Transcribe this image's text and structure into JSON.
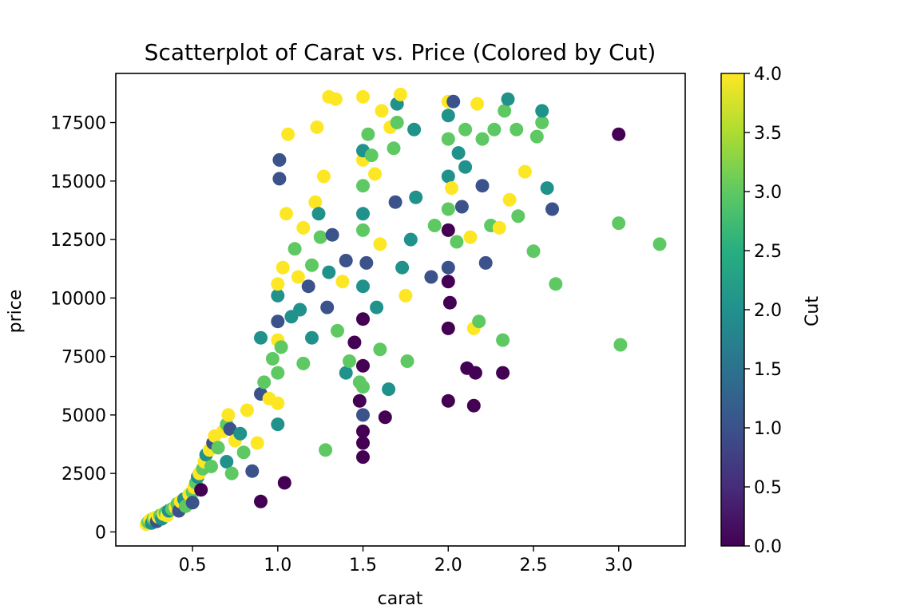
{
  "chart_data": {
    "type": "scatter",
    "title": "Scatterplot of Carat vs. Price (Colored by Cut)",
    "xlabel": "carat",
    "ylabel": "price",
    "xlim": [
      0.05,
      3.39
    ],
    "ylim": [
      -600,
      19600
    ],
    "xticks": [
      0.5,
      1.0,
      1.5,
      2.0,
      2.5,
      3.0
    ],
    "xtick_labels": [
      "0.5",
      "1.0",
      "1.5",
      "2.0",
      "2.5",
      "3.0"
    ],
    "yticks": [
      0,
      2500,
      5000,
      7500,
      10000,
      12500,
      15000,
      17500
    ],
    "ytick_labels": [
      "0",
      "2500",
      "5000",
      "7500",
      "10000",
      "12500",
      "15000",
      "17500"
    ],
    "colorbar": {
      "label": "Cut",
      "colormap": "viridis",
      "range": [
        0.0,
        4.0
      ],
      "ticks": [
        0.0,
        0.5,
        1.0,
        1.5,
        2.0,
        2.5,
        3.0,
        3.5,
        4.0
      ],
      "tick_labels": [
        "0.0",
        "0.5",
        "1.0",
        "1.5",
        "2.0",
        "2.5",
        "3.0",
        "3.5",
        "4.0"
      ]
    },
    "viridis_stops": [
      "#440154",
      "#472c7a",
      "#3b528b",
      "#2c728e",
      "#21918c",
      "#28ae80",
      "#5ec962",
      "#addc30",
      "#fde725"
    ],
    "points": [
      [
        0.23,
        330,
        4
      ],
      [
        0.24,
        420,
        3
      ],
      [
        0.25,
        500,
        4
      ],
      [
        0.26,
        380,
        2
      ],
      [
        0.27,
        560,
        3
      ],
      [
        0.28,
        610,
        4
      ],
      [
        0.29,
        450,
        1
      ],
      [
        0.3,
        640,
        4
      ],
      [
        0.31,
        700,
        3
      ],
      [
        0.32,
        560,
        2
      ],
      [
        0.33,
        760,
        4
      ],
      [
        0.34,
        820,
        3
      ],
      [
        0.35,
        700,
        4
      ],
      [
        0.36,
        900,
        2
      ],
      [
        0.38,
        980,
        3
      ],
      [
        0.4,
        1050,
        4
      ],
      [
        0.41,
        1200,
        3
      ],
      [
        0.42,
        900,
        1
      ],
      [
        0.43,
        1300,
        4
      ],
      [
        0.45,
        1400,
        2
      ],
      [
        0.46,
        1100,
        3
      ],
      [
        0.48,
        1600,
        4
      ],
      [
        0.5,
        1700,
        3
      ],
      [
        0.5,
        1250,
        1
      ],
      [
        0.51,
        1900,
        4
      ],
      [
        0.52,
        2100,
        3
      ],
      [
        0.53,
        2350,
        2
      ],
      [
        0.54,
        2500,
        4
      ],
      [
        0.55,
        1800,
        0
      ],
      [
        0.56,
        2700,
        3
      ],
      [
        0.57,
        3000,
        4
      ],
      [
        0.58,
        3300,
        2
      ],
      [
        0.6,
        3500,
        4
      ],
      [
        0.61,
        2800,
        3
      ],
      [
        0.62,
        3800,
        1
      ],
      [
        0.63,
        4100,
        4
      ],
      [
        0.65,
        3600,
        3
      ],
      [
        0.68,
        4300,
        4
      ],
      [
        0.7,
        4600,
        3
      ],
      [
        0.7,
        3000,
        2
      ],
      [
        0.71,
        5000,
        4
      ],
      [
        0.72,
        4400,
        1
      ],
      [
        0.73,
        2500,
        3
      ],
      [
        0.75,
        3900,
        4
      ],
      [
        0.78,
        4200,
        2
      ],
      [
        0.8,
        3400,
        3
      ],
      [
        0.82,
        5200,
        4
      ],
      [
        0.85,
        2600,
        1
      ],
      [
        0.88,
        3800,
        4
      ],
      [
        0.9,
        1300,
        0
      ],
      [
        0.9,
        5900,
        1
      ],
      [
        0.9,
        8300,
        2
      ],
      [
        0.92,
        6400,
        3
      ],
      [
        0.95,
        5700,
        4
      ],
      [
        0.97,
        7400,
        3
      ],
      [
        1.0,
        4600,
        2
      ],
      [
        1.0,
        5500,
        4
      ],
      [
        1.0,
        6800,
        3
      ],
      [
        1.0,
        8200,
        4
      ],
      [
        1.0,
        9000,
        1
      ],
      [
        1.0,
        10100,
        2
      ],
      [
        1.0,
        10600,
        4
      ],
      [
        1.01,
        15900,
        1
      ],
      [
        1.01,
        15100,
        1
      ],
      [
        1.02,
        7900,
        3
      ],
      [
        1.03,
        11300,
        4
      ],
      [
        1.04,
        2100,
        0
      ],
      [
        1.05,
        13600,
        4
      ],
      [
        1.06,
        17000,
        4
      ],
      [
        1.08,
        9200,
        2
      ],
      [
        1.1,
        12100,
        3
      ],
      [
        1.12,
        10900,
        4
      ],
      [
        1.13,
        9500,
        2
      ],
      [
        1.15,
        7200,
        3
      ],
      [
        1.15,
        13000,
        4
      ],
      [
        1.18,
        10500,
        1
      ],
      [
        1.2,
        11400,
        3
      ],
      [
        1.2,
        8300,
        2
      ],
      [
        1.22,
        14100,
        4
      ],
      [
        1.23,
        17300,
        4
      ],
      [
        1.24,
        13600,
        2
      ],
      [
        1.25,
        12600,
        3
      ],
      [
        1.27,
        15200,
        4
      ],
      [
        1.28,
        3500,
        3
      ],
      [
        1.29,
        9600,
        1
      ],
      [
        1.3,
        11100,
        2
      ],
      [
        1.3,
        18600,
        4
      ],
      [
        1.32,
        12700,
        1
      ],
      [
        1.34,
        18500,
        4
      ],
      [
        1.35,
        8600,
        3
      ],
      [
        1.38,
        10700,
        4
      ],
      [
        1.4,
        6800,
        2
      ],
      [
        1.4,
        11600,
        1
      ],
      [
        1.42,
        7300,
        3
      ],
      [
        1.45,
        8100,
        0
      ],
      [
        1.48,
        5600,
        0
      ],
      [
        1.48,
        6400,
        3
      ],
      [
        1.5,
        3200,
        0
      ],
      [
        1.5,
        3800,
        0
      ],
      [
        1.5,
        4300,
        0
      ],
      [
        1.5,
        5000,
        1
      ],
      [
        1.5,
        6200,
        3
      ],
      [
        1.5,
        7100,
        0
      ],
      [
        1.5,
        9100,
        0
      ],
      [
        1.5,
        10500,
        2
      ],
      [
        1.5,
        12900,
        3
      ],
      [
        1.5,
        13600,
        2
      ],
      [
        1.5,
        14800,
        3
      ],
      [
        1.5,
        15900,
        4
      ],
      [
        1.5,
        16300,
        2
      ],
      [
        1.5,
        18600,
        4
      ],
      [
        1.52,
        11500,
        1
      ],
      [
        1.53,
        17000,
        3
      ],
      [
        1.55,
        16100,
        3
      ],
      [
        1.57,
        15300,
        4
      ],
      [
        1.58,
        9600,
        2
      ],
      [
        1.6,
        7800,
        3
      ],
      [
        1.6,
        12300,
        4
      ],
      [
        1.61,
        18000,
        4
      ],
      [
        1.63,
        4900,
        0
      ],
      [
        1.65,
        6100,
        2
      ],
      [
        1.66,
        17300,
        4
      ],
      [
        1.68,
        16400,
        3
      ],
      [
        1.69,
        14100,
        1
      ],
      [
        1.7,
        17500,
        3
      ],
      [
        1.7,
        18300,
        2
      ],
      [
        1.72,
        18700,
        4
      ],
      [
        1.73,
        11300,
        2
      ],
      [
        1.75,
        10100,
        4
      ],
      [
        1.76,
        7300,
        3
      ],
      [
        1.78,
        12500,
        2
      ],
      [
        1.8,
        17200,
        2
      ],
      [
        1.81,
        14300,
        2
      ],
      [
        1.9,
        10900,
        1
      ],
      [
        1.92,
        13100,
        3
      ],
      [
        2.0,
        12900,
        0
      ],
      [
        2.0,
        11300,
        1
      ],
      [
        2.0,
        13800,
        3
      ],
      [
        2.0,
        15200,
        2
      ],
      [
        2.0,
        16800,
        3
      ],
      [
        2.0,
        17800,
        2
      ],
      [
        2.0,
        18400,
        4
      ],
      [
        2.0,
        10700,
        0
      ],
      [
        2.0,
        8700,
        0
      ],
      [
        2.0,
        5600,
        0
      ],
      [
        2.01,
        9800,
        0
      ],
      [
        2.02,
        14700,
        4
      ],
      [
        2.03,
        18400,
        1
      ],
      [
        2.05,
        12400,
        3
      ],
      [
        2.06,
        16200,
        2
      ],
      [
        2.08,
        13900,
        1
      ],
      [
        2.1,
        17200,
        3
      ],
      [
        2.1,
        15600,
        2
      ],
      [
        2.11,
        7000,
        0
      ],
      [
        2.13,
        12600,
        4
      ],
      [
        2.15,
        5400,
        0
      ],
      [
        2.15,
        8700,
        4
      ],
      [
        2.16,
        6800,
        0
      ],
      [
        2.17,
        18300,
        4
      ],
      [
        2.18,
        9000,
        3
      ],
      [
        2.2,
        16800,
        3
      ],
      [
        2.2,
        14800,
        1
      ],
      [
        2.22,
        11500,
        1
      ],
      [
        2.25,
        13100,
        3
      ],
      [
        2.27,
        17200,
        3
      ],
      [
        2.3,
        13000,
        4
      ],
      [
        2.32,
        6800,
        0
      ],
      [
        2.32,
        8200,
        3
      ],
      [
        2.33,
        18000,
        3
      ],
      [
        2.35,
        18500,
        2
      ],
      [
        2.36,
        14200,
        4
      ],
      [
        2.4,
        17200,
        3
      ],
      [
        2.41,
        13500,
        3
      ],
      [
        2.45,
        15400,
        4
      ],
      [
        2.5,
        12000,
        3
      ],
      [
        2.52,
        16900,
        3
      ],
      [
        2.55,
        17500,
        3
      ],
      [
        2.55,
        18000,
        2
      ],
      [
        2.58,
        14700,
        2
      ],
      [
        2.61,
        13800,
        1
      ],
      [
        2.63,
        10600,
        3
      ],
      [
        3.0,
        17000,
        0
      ],
      [
        3.0,
        13200,
        3
      ],
      [
        3.01,
        8000,
        3
      ],
      [
        3.24,
        12300,
        3
      ]
    ]
  }
}
